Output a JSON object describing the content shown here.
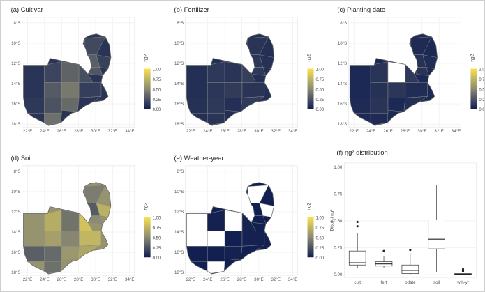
{
  "map_panels": [
    {
      "id": "cultivar",
      "title": "(a) Cultivar",
      "pattern": [
        0.1,
        0.18,
        0.32,
        0.22,
        0.12,
        0.28,
        0.42,
        0.15,
        0.24,
        0.35,
        0.1,
        0.2,
        0.3,
        0.16,
        0.26,
        0.38
      ]
    },
    {
      "id": "fertilizer",
      "title": "(b) Fertilizer",
      "pattern": [
        0.08,
        0.12,
        0.1,
        0.15,
        0.09,
        0.11,
        0.14,
        0.1,
        0.12,
        0.08,
        0.13,
        0.1,
        0.11,
        0.09,
        0.12,
        0.1
      ]
    },
    {
      "id": "planting-date",
      "title": "(c) Planting date",
      "pattern": [
        0.05,
        0.1,
        0.08,
        0.12,
        0.06,
        0.09,
        0.11,
        0.07,
        0.1,
        0.05,
        0.08,
        0.06,
        0.09,
        0.07,
        0.1,
        0.06
      ],
      "missing": [
        "(c) missing"
      ]
    },
    {
      "id": "soil",
      "title": "(d) Soil",
      "pattern": [
        0.55,
        0.7,
        0.4,
        0.82,
        0.3,
        0.62,
        0.48,
        0.75,
        0.35,
        0.58,
        0.66,
        0.44,
        0.28,
        0.72,
        0.5,
        0.38
      ]
    },
    {
      "id": "weather-year",
      "title": "(e) Weather-year",
      "pattern": [
        0.01,
        0.02,
        0.01,
        0.03,
        0.01,
        0.02,
        0.01,
        0.02,
        0.01,
        0.02,
        0.01,
        0.03,
        0.01,
        0.02,
        0.01,
        0.02
      ]
    }
  ],
  "map_axes": {
    "y_ticks": [
      "8°S",
      "10°S",
      "12°S",
      "14°S",
      "16°S",
      "18°S"
    ],
    "x_ticks": [
      "22°E",
      "24°E",
      "26°E",
      "28°E",
      "30°E",
      "32°E",
      "34°E"
    ]
  },
  "legend": {
    "title_main": "η",
    "title_sub": "g",
    "title_sup": "2",
    "labels": [
      "1.00",
      "0.75",
      "0.50",
      "0.25",
      "0.00"
    ],
    "colors": [
      "#f7e24f",
      "#8b8a73",
      "#101e50"
    ]
  },
  "chart_data": {
    "type": "box",
    "title": "(f) ηg² distribution",
    "ylabel": "District ηg²",
    "categories": [
      "cult",
      "fert",
      "pdate",
      "soil",
      "wth-yr"
    ],
    "y_ticks": [
      "1.00",
      "0.75",
      "0.50",
      "0.25",
      "0.00"
    ],
    "ylim": [
      0,
      1.0
    ],
    "boxes": [
      {
        "name": "cult",
        "min": 0.06,
        "q1": 0.09,
        "median": 0.11,
        "q3": 0.22,
        "max": 0.39,
        "outliers": [
          0.45,
          0.49
        ]
      },
      {
        "name": "fert",
        "min": 0.06,
        "q1": 0.08,
        "median": 0.1,
        "q3": 0.12,
        "max": 0.17,
        "outliers": [
          0.22
        ]
      },
      {
        "name": "pdate",
        "min": 0.0,
        "q1": 0.01,
        "median": 0.04,
        "q3": 0.09,
        "max": 0.2,
        "outliers": [
          0.23
        ]
      },
      {
        "name": "soil",
        "min": 0.02,
        "q1": 0.24,
        "median": 0.33,
        "q3": 0.51,
        "max": 0.83,
        "outliers": []
      },
      {
        "name": "wth-yr",
        "min": 0.0,
        "q1": 0.0,
        "median": 0.005,
        "q3": 0.01,
        "max": 0.02,
        "outliers": [
          0.03,
          0.04,
          0.05
        ]
      }
    ],
    "grid": true
  }
}
